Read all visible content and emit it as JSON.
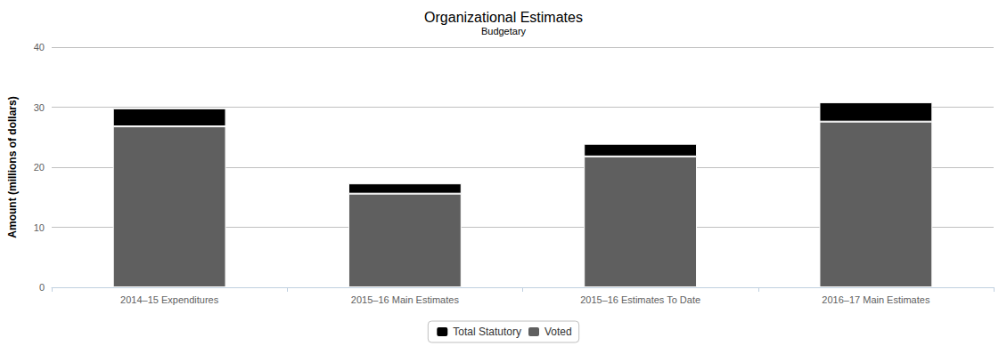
{
  "chart_data": {
    "type": "bar",
    "title": "Organizational Estimates",
    "subtitle": "Budgetary",
    "y_label": "Amount (millions of dollars)",
    "categories": [
      "2014–15 Expenditures",
      "2015–16 Main Estimates",
      "2015–16 Estimates To Date",
      "2016–17 Main Estimates"
    ],
    "series": [
      {
        "name": "Total Statutory",
        "color": "#000000",
        "values": [
          3.0,
          1.7,
          2.1,
          3.2
        ]
      },
      {
        "name": "Voted",
        "color": "#5f5f5f",
        "values": [
          26.8,
          15.6,
          21.8,
          27.6
        ]
      }
    ],
    "stacked": true,
    "ylim": [
      0,
      40
    ],
    "yticks": [
      0,
      10,
      20,
      30,
      40
    ],
    "grid": true,
    "legend": "bottom"
  }
}
